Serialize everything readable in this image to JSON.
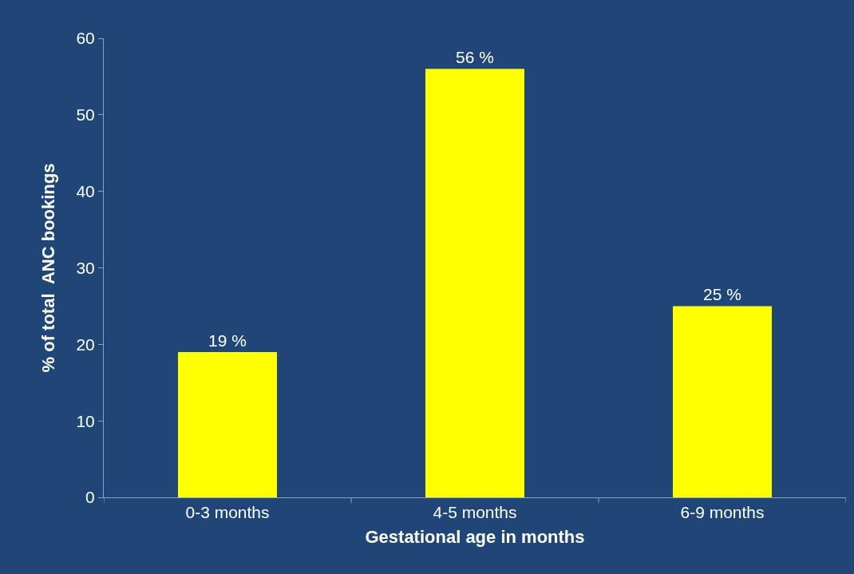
{
  "chart_data": {
    "type": "bar",
    "xlabel": "Gestational age in months",
    "ylabel": "% of total  ANC bookings",
    "categories": [
      "0-3 months",
      "4-5 months",
      "6-9 months"
    ],
    "values": [
      19,
      56,
      25
    ],
    "value_labels": [
      "19 %",
      "56 %",
      "25 %"
    ],
    "color": "#ffff00",
    "ylim": [
      0,
      60
    ],
    "yticks": [
      0,
      10,
      20,
      30,
      40,
      50,
      60
    ],
    "grid": false,
    "legend": false
  }
}
